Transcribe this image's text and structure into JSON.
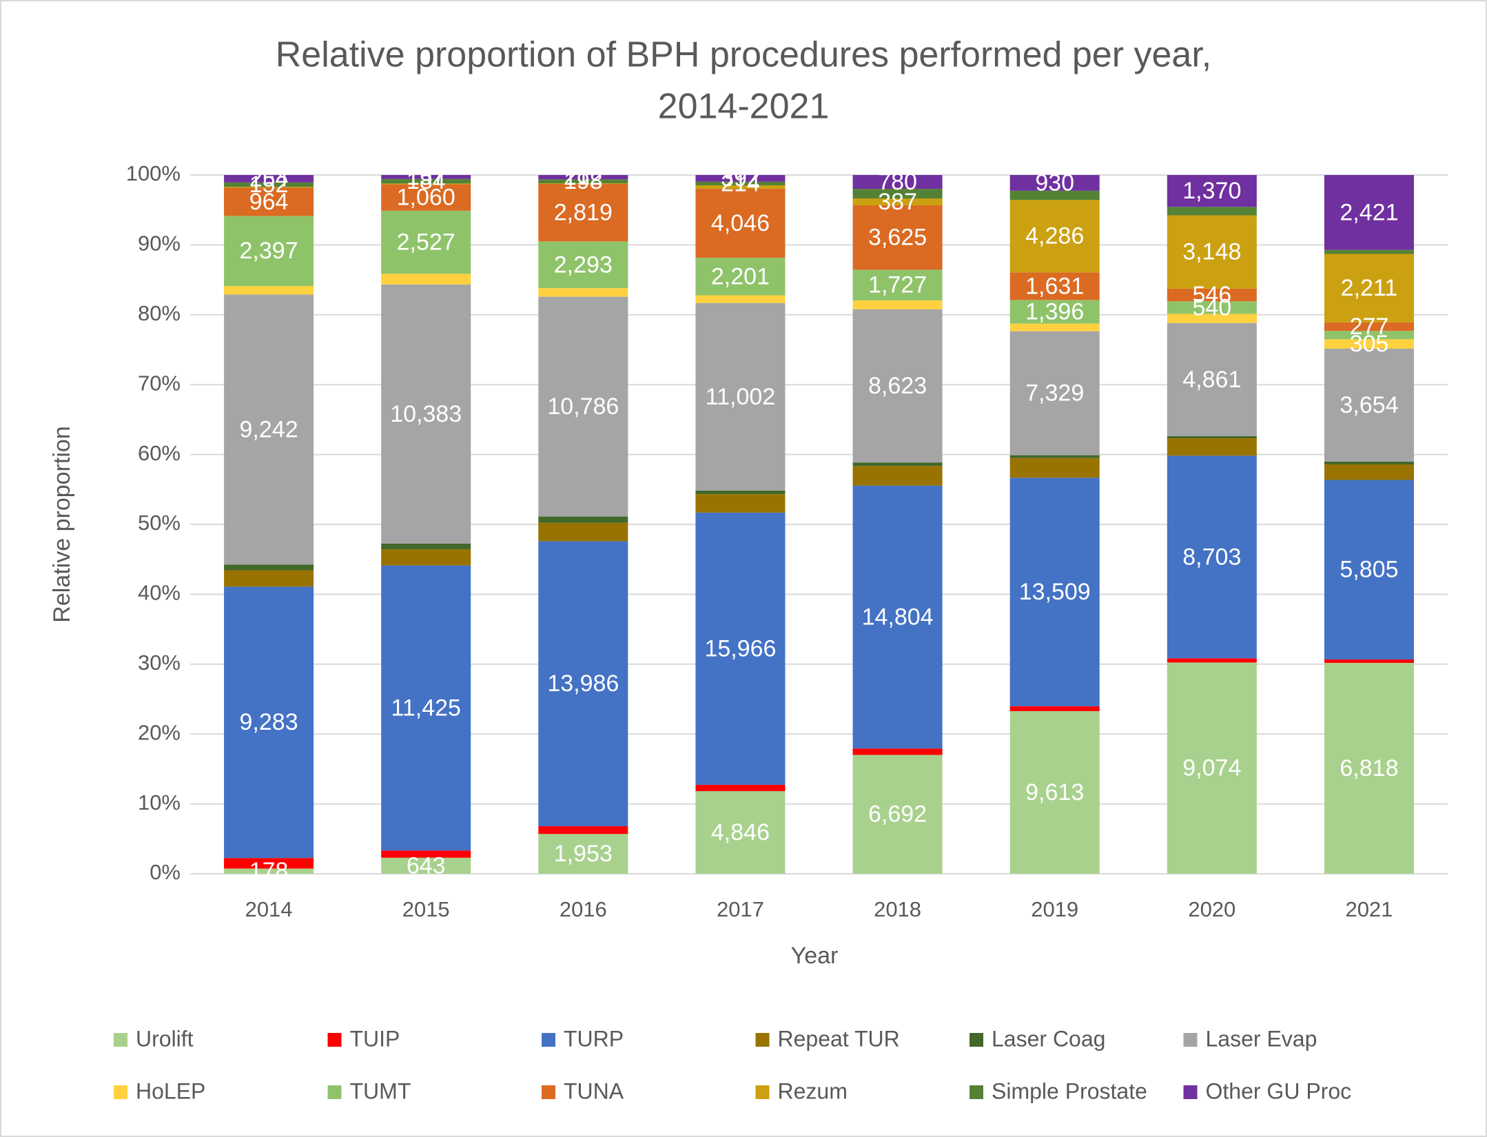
{
  "chart_data": {
    "type": "bar",
    "stacking": "percent",
    "title": [
      "Relative proportion of BPH procedures performed per year,",
      "2014-2021"
    ],
    "x_label": "Year",
    "y_label": "Relative proportion",
    "categories": [
      "2014",
      "2015",
      "2016",
      "2017",
      "2018",
      "2019",
      "2020",
      "2021"
    ],
    "ylim": [
      0,
      100
    ],
    "yticks": [
      {
        "value": 0,
        "label": "0%"
      },
      {
        "value": 10,
        "label": "10%"
      },
      {
        "value": 20,
        "label": "20%"
      },
      {
        "value": 30,
        "label": "30%"
      },
      {
        "value": 40,
        "label": "40%"
      },
      {
        "value": 50,
        "label": "50%"
      },
      {
        "value": 60,
        "label": "60%"
      },
      {
        "value": 70,
        "label": "70%"
      },
      {
        "value": 80,
        "label": "80%"
      },
      {
        "value": 90,
        "label": "90%"
      },
      {
        "value": 100,
        "label": "100%"
      }
    ],
    "grid": true,
    "legend": "bottom",
    "series": [
      {
        "name": "Urolift",
        "color": "#a9d18e",
        "values": [
          178,
          643,
          1953,
          4846,
          6692,
          9613,
          9074,
          6818
        ],
        "value_labels": [
          "178",
          "643",
          "1,953",
          "4,846",
          "6,692",
          "9,613",
          "9,074",
          "6,818"
        ]
      },
      {
        "name": "TUIP",
        "color": "#ff0000",
        "values": [
          360,
          290,
          380,
          370,
          360,
          290,
          180,
          110
        ],
        "value_labels": [
          null,
          null,
          null,
          null,
          null,
          null,
          null,
          null
        ]
      },
      {
        "name": "TURP",
        "color": "#4472c4",
        "values": [
          9283,
          11425,
          13986,
          15966,
          14804,
          13509,
          8703,
          5805
        ],
        "value_labels": [
          "9,283",
          "11,425",
          "13,986",
          "15,966",
          "14,804",
          "13,509",
          "8,703",
          "5,805"
        ]
      },
      {
        "name": "Repeat TUR",
        "color": "#997300",
        "values": [
          560,
          650,
          900,
          1080,
          1100,
          1160,
          750,
          500
        ],
        "value_labels": [
          null,
          null,
          null,
          null,
          null,
          null,
          null,
          null
        ]
      },
      {
        "name": "Laser Coag",
        "color": "#43682b",
        "values": [
          190,
          230,
          310,
          210,
          200,
          170,
          90,
          90
        ],
        "value_labels": [
          null,
          null,
          null,
          null,
          null,
          null,
          null,
          null
        ]
      },
      {
        "name": "Laser Evap",
        "color": "#a5a5a5",
        "values": [
          9242,
          10383,
          10786,
          11002,
          8623,
          7329,
          4861,
          3654
        ],
        "value_labels": [
          "9,242",
          "10,383",
          "10,786",
          "11,002",
          "8,623",
          "7,329",
          "4,861",
          "3,654"
        ]
      },
      {
        "name": "HoLEP",
        "color": "#ffd13f",
        "values": [
          290,
          430,
          420,
          450,
          500,
          450,
          390,
          305
        ],
        "value_labels": [
          null,
          null,
          null,
          null,
          null,
          null,
          null,
          "305"
        ]
      },
      {
        "name": "TUMT",
        "color": "#8fc36a",
        "values": [
          2397,
          2527,
          2293,
          2201,
          1727,
          1396,
          540,
          270
        ],
        "value_labels": [
          "2,397",
          "2,527",
          "2,293",
          "2,201",
          "1,727",
          "1,396",
          "540",
          null
        ]
      },
      {
        "name": "TUNA",
        "color": "#db6a22",
        "values": [
          964,
          1060,
          2819,
          4046,
          3625,
          1631,
          546,
          277
        ],
        "value_labels": [
          "964",
          "1,060",
          "2,819",
          "4,046",
          "3,625",
          "1,631",
          "546",
          "277"
        ]
      },
      {
        "name": "Rezum",
        "color": "#cca111",
        "values": [
          30,
          30,
          30,
          200,
          387,
          4286,
          3148,
          2211
        ],
        "value_labels": [
          null,
          null,
          null,
          null,
          "387",
          "4,286",
          "3,148",
          "2,211"
        ]
      },
      {
        "name": "Simple Prostate",
        "color": "#548235",
        "values": [
          152,
          184,
          198,
          214,
          540,
          540,
          360,
          130
        ],
        "value_labels": [
          "152",
          "184",
          "198",
          "214",
          null,
          null,
          null,
          null
        ]
      },
      {
        "name": "Other GU Proc",
        "color": "#7030a0",
        "values": [
          254,
          157,
          212,
          392,
          780,
          930,
          1370,
          2421
        ],
        "value_labels": [
          "254",
          "157",
          "212",
          "392",
          "780",
          "930",
          "1,370",
          "2,421"
        ]
      }
    ]
  }
}
